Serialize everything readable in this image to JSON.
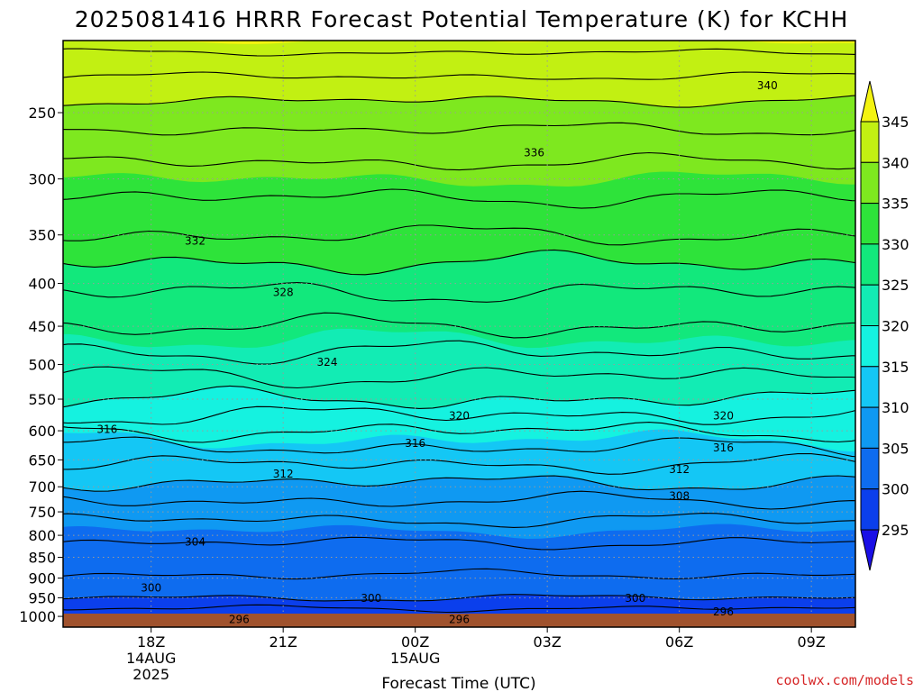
{
  "title": "2025081416 HRRR Forecast Potential Temperature (K) for KCHH",
  "xlabel": "Forecast Time (UTC)",
  "credit": "coolwx.com/models",
  "colors": {
    "terrain": "#a0522d",
    "contour": "#000000",
    "grid": "#9a9a9a",
    "credit": "#d62728"
  },
  "chart_data": {
    "type": "heatmap",
    "title": "2025081416 HRRR Forecast Potential Temperature (K) for KCHH",
    "xlabel": "Forecast Time (UTC)",
    "ylabel": "",
    "x_ticks": [
      {
        "hour": 18,
        "lines": [
          "18Z",
          "14AUG",
          "2025"
        ]
      },
      {
        "hour": 21,
        "lines": [
          "21Z"
        ]
      },
      {
        "hour": 24,
        "lines": [
          "00Z",
          "15AUG"
        ]
      },
      {
        "hour": 27,
        "lines": [
          "03Z"
        ]
      },
      {
        "hour": 30,
        "lines": [
          "06Z"
        ]
      },
      {
        "hour": 33,
        "lines": [
          "09Z"
        ]
      }
    ],
    "xlim": [
      16,
      34
    ],
    "y_ticks": [
      250,
      300,
      350,
      400,
      450,
      500,
      550,
      600,
      650,
      700,
      750,
      800,
      850,
      900,
      950,
      1000
    ],
    "y_scale": "log",
    "y_inverted": true,
    "ylim_hpa": [
      1030,
      205
    ],
    "colorbar": {
      "levels": [
        295,
        300,
        305,
        310,
        315,
        320,
        325,
        330,
        335,
        340,
        345
      ],
      "colors": [
        "#1a0fe6",
        "#0b3fec",
        "#0e6cef",
        "#0f99f2",
        "#14c7f5",
        "#15f2e0",
        "#12ecb4",
        "#12e87c",
        "#2ee33a",
        "#7ee81f",
        "#c2f012",
        "#f4f411"
      ],
      "extend": "both"
    },
    "contour_levels": [
      294,
      296,
      298,
      300,
      302,
      304,
      306,
      308,
      310,
      312,
      314,
      316,
      318,
      320,
      322,
      324,
      326,
      328,
      330,
      332,
      334,
      336,
      338,
      340,
      342,
      344
    ],
    "theta_profile": [
      {
        "p": 1030,
        "theta": 295.0
      },
      {
        "p": 1000,
        "theta": 296.5
      },
      {
        "p": 950,
        "theta": 300.0
      },
      {
        "p": 900,
        "theta": 301.8
      },
      {
        "p": 850,
        "theta": 303.0
      },
      {
        "p": 800,
        "theta": 304.5
      },
      {
        "p": 750,
        "theta": 306.8
      },
      {
        "p": 700,
        "theta": 309.5
      },
      {
        "p": 650,
        "theta": 312.5
      },
      {
        "p": 600,
        "theta": 316.0
      },
      {
        "p": 550,
        "theta": 320.0
      },
      {
        "p": 500,
        "theta": 323.0
      },
      {
        "p": 450,
        "theta": 326.0
      },
      {
        "p": 400,
        "theta": 328.5
      },
      {
        "p": 350,
        "theta": 332.0
      },
      {
        "p": 300,
        "theta": 335.0
      },
      {
        "p": 250,
        "theta": 339.0
      },
      {
        "p": 205,
        "theta": 345.0
      }
    ],
    "contour_labels": [
      {
        "value": "340",
        "hour": 32.0,
        "p": 232
      },
      {
        "value": "336",
        "hour": 26.7,
        "p": 279
      },
      {
        "value": "332",
        "hour": 19.0,
        "p": 356
      },
      {
        "value": "328",
        "hour": 21.0,
        "p": 410
      },
      {
        "value": "324",
        "hour": 22.0,
        "p": 497
      },
      {
        "value": "320",
        "hour": 25.0,
        "p": 576
      },
      {
        "value": "320",
        "hour": 31.0,
        "p": 576
      },
      {
        "value": "316",
        "hour": 17.0,
        "p": 598
      },
      {
        "value": "316",
        "hour": 24.0,
        "p": 621
      },
      {
        "value": "316",
        "hour": 31.0,
        "p": 629
      },
      {
        "value": "312",
        "hour": 21.0,
        "p": 676
      },
      {
        "value": "312",
        "hour": 30.0,
        "p": 667
      },
      {
        "value": "308",
        "hour": 30.0,
        "p": 718
      },
      {
        "value": "304",
        "hour": 19.0,
        "p": 815
      },
      {
        "value": "300",
        "hour": 18.0,
        "p": 925
      },
      {
        "value": "300",
        "hour": 23.0,
        "p": 952
      },
      {
        "value": "300",
        "hour": 29.0,
        "p": 952
      },
      {
        "value": "296",
        "hour": 20.0,
        "p": 1009
      },
      {
        "value": "296",
        "hour": 25.0,
        "p": 1009
      },
      {
        "value": "296",
        "hour": 31.0,
        "p": 987
      }
    ]
  }
}
